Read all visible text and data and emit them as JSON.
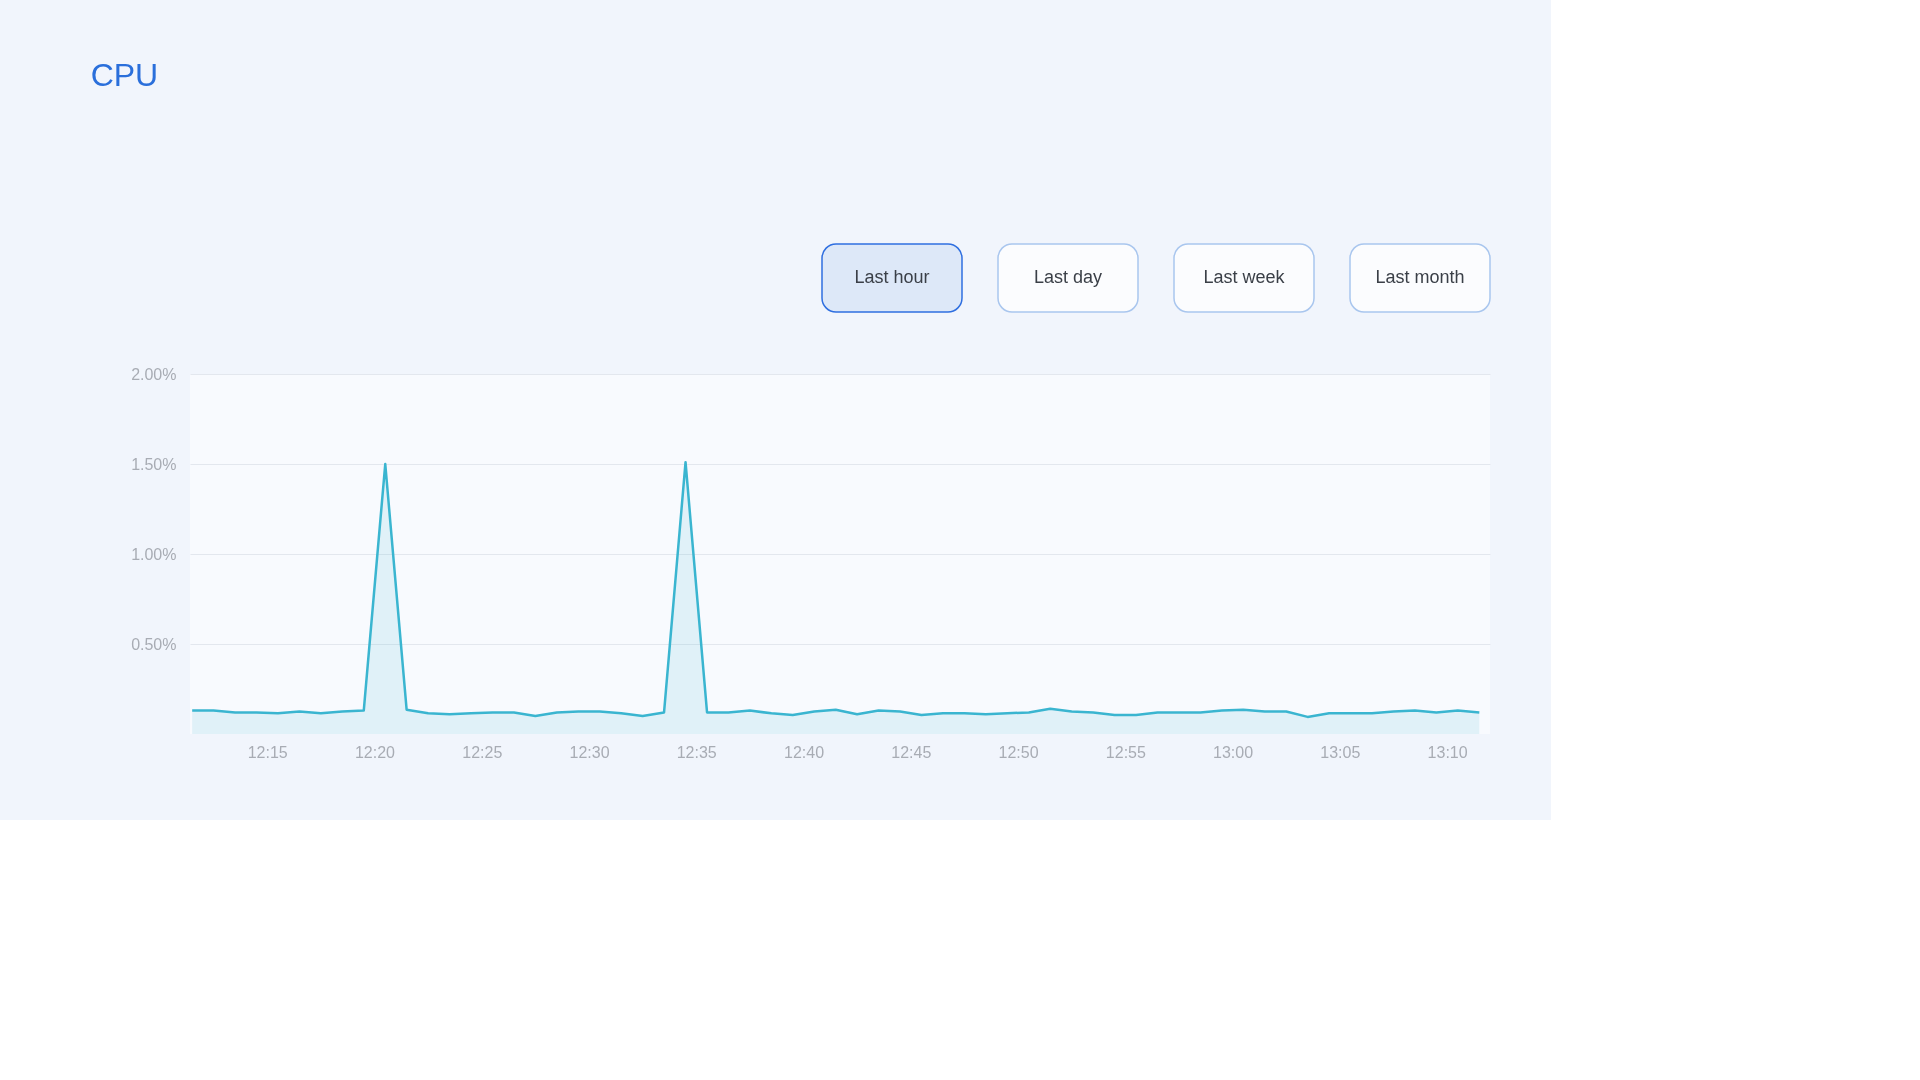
{
  "chart_data": {
    "type": "area",
    "title": "CPU",
    "annotations": [
      "Last hour",
      "Last day",
      "Last week",
      "Last month"
    ],
    "x": [
      12.1917,
      12.2083,
      12.225,
      12.2417,
      12.2583,
      12.275,
      12.2917,
      12.3083,
      12.325,
      12.3417,
      12.3583,
      12.375,
      12.3917,
      12.4083,
      12.425,
      12.4417,
      12.4583,
      12.475,
      12.4917,
      12.5083,
      12.525,
      12.5417,
      12.5583,
      12.575,
      12.5917,
      12.6083,
      12.625,
      12.6417,
      12.6583,
      12.675,
      12.6917,
      12.7083,
      12.725,
      12.7417,
      12.7583,
      12.775,
      12.7917,
      12.8083,
      12.825,
      12.8417,
      12.8583,
      12.875,
      12.8917,
      12.9083,
      12.925,
      12.9417,
      12.9583,
      12.975,
      12.9917,
      13.0083,
      13.025,
      13.0417,
      13.0583,
      13.075,
      13.0917,
      13.1083,
      13.125,
      13.1417,
      13.1583,
      13.175,
      13.1917
    ],
    "series": [
      {
        "color": "#3ab5d0",
        "values": [
          0.13,
          0.13,
          0.12,
          0.12,
          0.115,
          0.125,
          0.115,
          0.125,
          0.13,
          1.5,
          0.135,
          0.115,
          0.11,
          0.115,
          0.12,
          0.12,
          0.1,
          0.12,
          0.125,
          0.125,
          0.115,
          0.1,
          0.12,
          1.51,
          0.12,
          0.12,
          0.13,
          0.115,
          0.105,
          0.125,
          0.135,
          0.11,
          0.13,
          0.125,
          0.105,
          0.115,
          0.115,
          0.11,
          0.115,
          0.12,
          0.14,
          0.125,
          0.12,
          0.105,
          0.105,
          0.12,
          0.12,
          0.12,
          0.13,
          0.135,
          0.125,
          0.125,
          0.095,
          0.115,
          0.115,
          0.115,
          0.125,
          0.13,
          0.12,
          0.13,
          0.12
        ]
      }
    ],
    "xlim": [
      12.19,
      13.2
    ],
    "ylim": [
      0,
      2
    ],
    "xticks": [
      {
        "value": 12.25,
        "label": "12:15"
      },
      {
        "value": 12.3333,
        "label": "12:20"
      },
      {
        "value": 12.4167,
        "label": "12:25"
      },
      {
        "value": 12.5,
        "label": "12:30"
      },
      {
        "value": 12.5833,
        "label": "12:35"
      },
      {
        "value": 12.6667,
        "label": "12:40"
      },
      {
        "value": 12.75,
        "label": "12:45"
      },
      {
        "value": 12.8333,
        "label": "12:50"
      },
      {
        "value": 12.9167,
        "label": "12:55"
      },
      {
        "value": 13.0,
        "label": "13:00"
      },
      {
        "value": 13.0833,
        "label": "13:05"
      },
      {
        "value": 13.1667,
        "label": "13:10"
      }
    ],
    "yticks": [
      {
        "value": 0.5,
        "label": "0.50%"
      },
      {
        "value": 1,
        "label": "1.00%"
      },
      {
        "value": 1.5,
        "label": "1.50%"
      },
      {
        "value": 2,
        "label": "2.00%"
      }
    ],
    "grid": "y",
    "marker": "none",
    "line_style": "solid"
  }
}
